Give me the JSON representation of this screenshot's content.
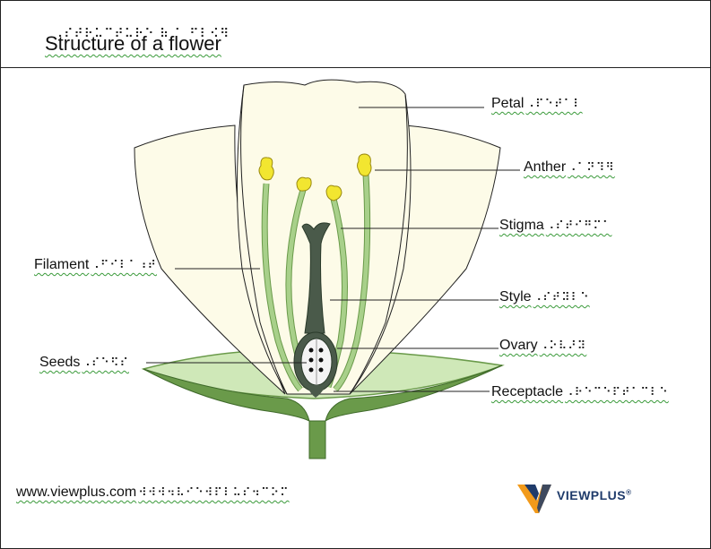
{
  "title": "Structure of a flower",
  "title_braille": "⠠⠎⠞⠗⠥⠉⠞⠥⠗⠑ ⠷ ⠁ ⠋⠇⠪⠻",
  "labels": {
    "petal": {
      "text": "Petal",
      "braille": "⠠⠏⠑⠞⠁⠇"
    },
    "anther": {
      "text": "Anther",
      "braille": "⠠⠁⠝⠹⠻"
    },
    "stigma": {
      "text": "Stigma",
      "braille": "⠠⠎⠞⠊⠛⠍⠁"
    },
    "filament": {
      "text": "Filament",
      "braille": "⠠⠋⠊⠇⠁⠰⠞"
    },
    "style": {
      "text": "Style",
      "braille": "⠠⠎⠞⠽⠇⠑"
    },
    "ovary": {
      "text": "Ovary",
      "braille": "⠠⠕⠧⠜⠽"
    },
    "seeds": {
      "text": "Seeds",
      "braille": "⠠⠎⠑⠫⠎"
    },
    "receptacle": {
      "text": "Receptacle",
      "braille": "⠠⠗⠑⠉⠑⠏⠞⠁⠉⠇⠑"
    }
  },
  "footer": {
    "url": "www.viewplus.com",
    "url_braille": "⠺⠺⠺⠲⠧⠊⠑⠺⠏⠇⠥⠎⠲⠉⠕⠍",
    "logo_text": "VIEWPLUS",
    "logo_reg": "®"
  },
  "colors": {
    "petal_fill": "#fdfbe8",
    "receptacle_fill": "#cfe8b8",
    "stem_green": "#6a9a4a",
    "filament_green": "#a8d08a",
    "anther_yellow": "#f2e630",
    "pistil_dark": "#4a5a4a",
    "logo_orange": "#f29a1a",
    "logo_blue": "#1f3b6b"
  }
}
